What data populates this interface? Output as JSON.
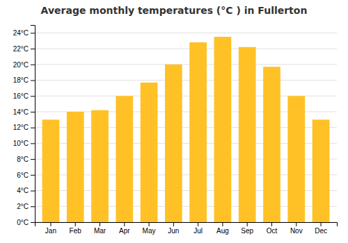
{
  "chart_data": {
    "type": "bar",
    "title": "Average monthly temperatures (°C ) in Fullerton",
    "categories": [
      "Jan",
      "Feb",
      "Mar",
      "Apr",
      "May",
      "Jun",
      "Jul",
      "Aug",
      "Sep",
      "Oct",
      "Nov",
      "Dec"
    ],
    "values": [
      13.0,
      14.0,
      14.2,
      16.0,
      17.7,
      20.0,
      22.8,
      23.5,
      22.2,
      19.7,
      16.0,
      13.0
    ],
    "color": "#FFC125",
    "ylim": [
      0,
      25
    ],
    "yticks": [
      {
        "value": 0,
        "label": "0°C"
      },
      {
        "value": 2,
        "label": "2°C"
      },
      {
        "value": 4,
        "label": "4°C"
      },
      {
        "value": 6,
        "label": "6°C"
      },
      {
        "value": 8,
        "label": "8°C"
      },
      {
        "value": 10,
        "label": "10°C"
      },
      {
        "value": 12,
        "label": "12°C"
      },
      {
        "value": 14,
        "label": "14°C"
      },
      {
        "value": 16,
        "label": "16°C"
      },
      {
        "value": 18,
        "label": "18°C"
      },
      {
        "value": 20,
        "label": "20°C"
      },
      {
        "value": 22,
        "label": "22°C"
      },
      {
        "value": 24,
        "label": "24°C"
      }
    ],
    "grid": true
  }
}
